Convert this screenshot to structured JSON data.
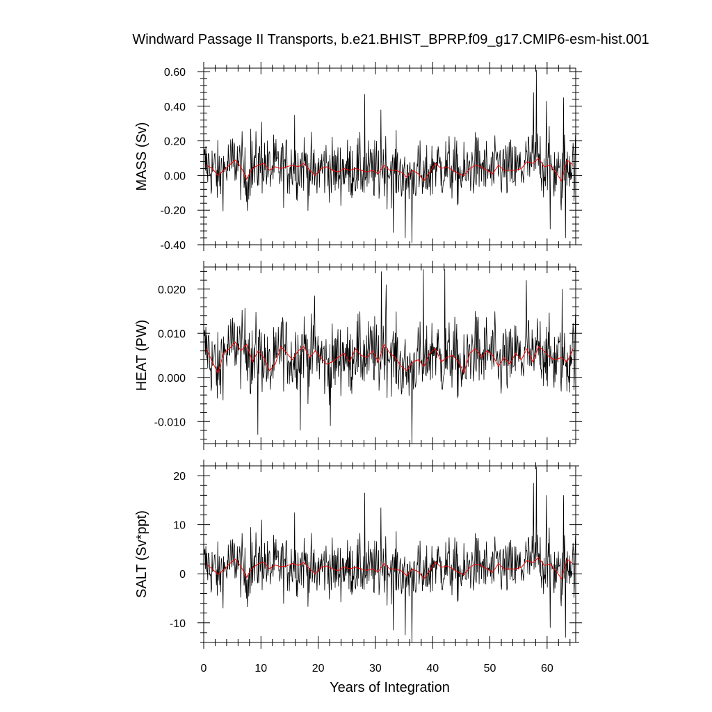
{
  "chart_data": {
    "type": "line",
    "title": "Windward Passage II Transports, b.e21.BHIST_BPRP.f09_g17.CMIP6-esm-hist.001",
    "xlabel": "Years of Integration",
    "xlim": [
      0,
      65
    ],
    "xticks": [
      0,
      10,
      20,
      30,
      40,
      50,
      60
    ],
    "x_tick_labels": [
      "0",
      "10",
      "20",
      "30",
      "40",
      "50",
      "60"
    ],
    "colors": {
      "monthly": "#000000",
      "annual": "#ff0000"
    },
    "panels": [
      {
        "name": "mass",
        "ylabel": "MASS (Sv)",
        "ylim": [
          -0.4,
          0.62
        ],
        "yticks": [
          -0.4,
          -0.2,
          0.0,
          0.2,
          0.4,
          0.6
        ],
        "y_tick_labels": [
          "-0.40",
          "-0.20",
          "0.00",
          "0.20",
          "0.40",
          "0.60"
        ],
        "monthly_std": 0.1,
        "annual_mean": [
          0.06,
          0.04,
          0.0,
          0.03,
          0.06,
          0.09,
          0.05,
          -0.02,
          0.04,
          0.06,
          0.07,
          0.03,
          0.05,
          0.04,
          0.05,
          0.06,
          0.05,
          0.07,
          0.03,
          0.0,
          0.04,
          0.05,
          0.03,
          0.02,
          0.04,
          0.03,
          0.04,
          0.03,
          0.02,
          0.03,
          0.01,
          0.06,
          0.03,
          0.03,
          0.02,
          -0.01,
          0.03,
          0.01,
          -0.03,
          0.02,
          0.07,
          0.04,
          0.05,
          0.03,
          0.01,
          0.0,
          0.04,
          0.06,
          0.05,
          0.03,
          0.01,
          0.06,
          0.03,
          0.03,
          0.03,
          0.04,
          0.08,
          0.07,
          0.1,
          0.05,
          0.06,
          0.02,
          -0.03,
          0.09,
          0.06
        ],
        "spikes": [
          [
            28.1,
            0.47
          ],
          [
            30.9,
            0.38
          ],
          [
            33.1,
            -0.33
          ],
          [
            35.2,
            -0.36
          ],
          [
            36.3,
            -0.39
          ],
          [
            57.6,
            0.48
          ],
          [
            58.1,
            0.61
          ],
          [
            59.8,
            0.43
          ],
          [
            60.5,
            -0.31
          ],
          [
            62.8,
            0.45
          ],
          [
            63.2,
            -0.36
          ],
          [
            10.1,
            0.31
          ],
          [
            15.8,
            0.35
          ],
          [
            8.2,
            0.27
          ]
        ]
      },
      {
        "name": "heat",
        "ylabel": "HEAT (PW)",
        "ylim": [
          -0.015,
          0.025
        ],
        "yticks": [
          -0.01,
          0.0,
          0.01,
          0.02
        ],
        "y_tick_labels": [
          "-0.010",
          "0.000",
          "0.010",
          "0.020"
        ],
        "monthly_std": 0.0045,
        "annual_mean": [
          0.0065,
          0.0035,
          0.001,
          0.0055,
          0.0065,
          0.008,
          0.006,
          0.0075,
          0.0035,
          0.006,
          0.0045,
          0.0015,
          0.003,
          0.007,
          0.0055,
          0.004,
          0.006,
          0.007,
          0.0045,
          0.006,
          0.0045,
          0.003,
          0.0035,
          0.0045,
          0.0055,
          0.0035,
          0.0065,
          0.005,
          0.0045,
          0.006,
          0.0035,
          0.0075,
          0.0055,
          0.0045,
          0.0025,
          0.0015,
          0.0035,
          0.004,
          0.0025,
          0.0055,
          0.0065,
          0.0035,
          0.0045,
          0.005,
          0.0035,
          0.001,
          0.0055,
          0.0065,
          0.0045,
          0.006,
          0.005,
          0.0025,
          0.0045,
          0.003,
          0.0055,
          0.004,
          0.0065,
          0.0035,
          0.007,
          0.006,
          0.0045,
          0.004,
          0.0045,
          0.0035,
          0.0065
        ],
        "spikes": [
          [
            31.0,
            0.024
          ],
          [
            31.8,
            0.021
          ],
          [
            36.3,
            -0.015
          ],
          [
            38.3,
            0.0245
          ],
          [
            42.1,
            0.0245
          ],
          [
            9.4,
            -0.013
          ],
          [
            22.1,
            -0.011
          ],
          [
            16.8,
            -0.012
          ],
          [
            56.3,
            0.022
          ],
          [
            62.6,
            0.02
          ],
          [
            19.3,
            0.0185
          ]
        ]
      },
      {
        "name": "salt",
        "ylabel": "SALT (Sv*ppt)",
        "ylim": [
          -14,
          22
        ],
        "yticks": [
          -10,
          0,
          10,
          20
        ],
        "y_tick_labels": [
          "-10",
          "0",
          "10",
          "20"
        ],
        "monthly_std": 3.3,
        "annual_mean": [
          2.0,
          1.0,
          -0.2,
          0.8,
          2.0,
          3.0,
          1.5,
          -0.7,
          1.2,
          2.0,
          2.4,
          1.0,
          1.8,
          1.4,
          1.6,
          2.1,
          1.7,
          2.3,
          1.0,
          0.0,
          1.3,
          1.6,
          1.0,
          0.6,
          1.4,
          1.0,
          1.3,
          1.0,
          0.7,
          1.0,
          0.4,
          2.1,
          1.0,
          1.0,
          0.6,
          -0.4,
          1.0,
          0.4,
          -1.0,
          0.7,
          2.4,
          1.3,
          1.6,
          1.0,
          0.3,
          -0.2,
          1.3,
          2.0,
          1.7,
          1.0,
          0.3,
          2.1,
          1.0,
          1.0,
          1.0,
          1.3,
          2.7,
          2.3,
          3.3,
          1.7,
          2.0,
          0.7,
          -1.0,
          3.0,
          2.0
        ],
        "spikes": [
          [
            28.1,
            16.5
          ],
          [
            30.9,
            13.5
          ],
          [
            33.1,
            -11.5
          ],
          [
            35.2,
            -12.5
          ],
          [
            36.3,
            -14.0
          ],
          [
            57.6,
            18.5
          ],
          [
            58.1,
            21.8
          ],
          [
            59.8,
            16.0
          ],
          [
            60.5,
            -11.0
          ],
          [
            62.8,
            16.0
          ],
          [
            63.2,
            -13.0
          ],
          [
            10.1,
            11.0
          ],
          [
            15.8,
            12.5
          ],
          [
            8.2,
            9.5
          ]
        ]
      }
    ]
  }
}
